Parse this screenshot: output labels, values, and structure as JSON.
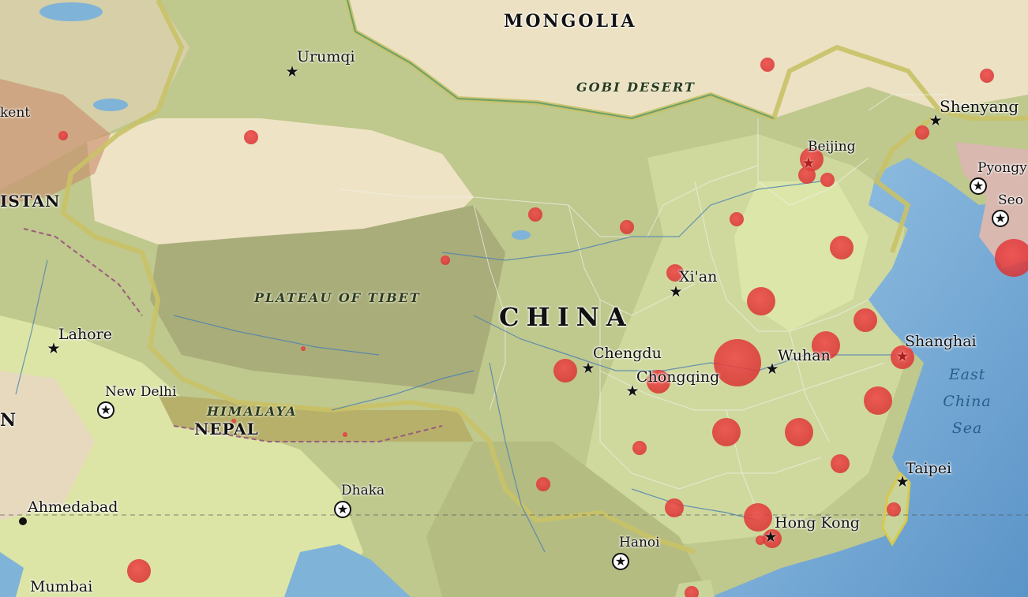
{
  "map": {
    "countries": [
      {
        "id": "mongolia",
        "name": "MONGOLIA"
      },
      {
        "id": "china",
        "name": "CHINA"
      },
      {
        "id": "nepal",
        "name": "NEPAL"
      },
      {
        "id": "istan",
        "name": "ISTAN"
      },
      {
        "id": "n",
        "name": "N"
      }
    ],
    "regions": [
      {
        "id": "gobi",
        "name": "GOBI DESERT"
      },
      {
        "id": "tibet",
        "name": "PLATEAU OF TIBET"
      },
      {
        "id": "himalaya",
        "name": "HIMALAYA"
      }
    ],
    "seas": [
      {
        "id": "east-china-sea",
        "name": "East China Sea",
        "lines": [
          "East",
          "China",
          "Sea"
        ]
      }
    ],
    "cities": [
      {
        "id": "urumqi",
        "name": "Urumqi",
        "marker": "star"
      },
      {
        "id": "kent",
        "name": "kent",
        "marker": "none"
      },
      {
        "id": "beijing",
        "name": "Beijing",
        "marker": "star"
      },
      {
        "id": "shenyang",
        "name": "Shenyang",
        "marker": "star"
      },
      {
        "id": "pyongyang",
        "name": "Pyongy",
        "marker": "capital"
      },
      {
        "id": "seoul",
        "name": "Seo",
        "marker": "capital"
      },
      {
        "id": "xian",
        "name": "Xi'an",
        "marker": "star"
      },
      {
        "id": "lahore",
        "name": "Lahore",
        "marker": "star"
      },
      {
        "id": "chengdu",
        "name": "Chengdu",
        "marker": "star"
      },
      {
        "id": "chongqing",
        "name": "Chongqing",
        "marker": "star"
      },
      {
        "id": "wuhan",
        "name": "Wuhan",
        "marker": "star"
      },
      {
        "id": "shanghai",
        "name": "Shanghai",
        "marker": "star"
      },
      {
        "id": "new-delhi",
        "name": "New Delhi",
        "marker": "capital"
      },
      {
        "id": "taipei",
        "name": "Taipei",
        "marker": "star"
      },
      {
        "id": "dhaka",
        "name": "Dhaka",
        "marker": "capital"
      },
      {
        "id": "ahmedabad",
        "name": "Ahmedabad",
        "marker": "dot"
      },
      {
        "id": "hong-kong",
        "name": "Hong Kong",
        "marker": "star"
      },
      {
        "id": "hanoi",
        "name": "Hanoi",
        "marker": "capital"
      },
      {
        "id": "mumbai",
        "name": "Mumbai",
        "marker": "none"
      }
    ],
    "bubble_color": "#e03a3a",
    "colors": {
      "ocean": "#7fb3d8",
      "land": "#cfd6a3",
      "desert": "#efe1bf",
      "border": "#b8b060"
    }
  }
}
